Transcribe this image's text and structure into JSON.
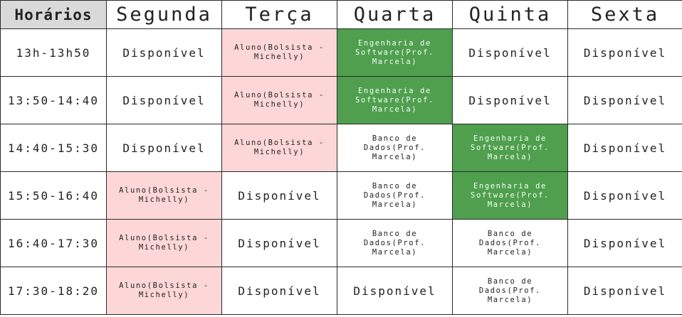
{
  "header": {
    "corner_label": "Horários",
    "days": [
      "Segunda",
      "Terça",
      "Quarta",
      "Quinta",
      "Sexta"
    ]
  },
  "rows": [
    {
      "time": "13h-13h50",
      "cells": [
        "Disponível",
        "Aluno(Bolsista -Michelly)",
        "Engenharia de Software(Prof. Marcela)",
        "Disponível",
        "Disponível"
      ],
      "kinds": [
        "free",
        "aluno",
        "eng",
        "free",
        "free"
      ]
    },
    {
      "time": "13:50-14:40",
      "cells": [
        "Disponível",
        "Aluno(Bolsista -Michelly)",
        "Engenharia de Software(Prof. Marcela)",
        "Disponível",
        "Disponível"
      ],
      "kinds": [
        "free",
        "aluno",
        "eng",
        "free",
        "free"
      ]
    },
    {
      "time": "14:40-15:30",
      "cells": [
        "Disponível",
        "Aluno(Bolsista -Michelly)",
        "Banco de Dados(Prof. Marcela)",
        "Engenharia de Software(Prof. Marcela)",
        "Disponível"
      ],
      "kinds": [
        "free",
        "aluno",
        "banco",
        "eng",
        "free"
      ]
    },
    {
      "time": "15:50-16:40",
      "cells": [
        "Aluno(Bolsista -Michelly)",
        "Disponível",
        "Banco de Dados(Prof. Marcela)",
        "Engenharia de Software(Prof. Marcela)",
        "Disponível"
      ],
      "kinds": [
        "aluno",
        "free",
        "banco",
        "eng",
        "free"
      ]
    },
    {
      "time": "16:40-17:30",
      "cells": [
        "Aluno(Bolsista -Michelly)",
        "Disponível",
        "Banco de Dados(Prof. Marcela)",
        "Banco de Dados(Prof. Marcela)",
        "Disponível"
      ],
      "kinds": [
        "aluno",
        "free",
        "banco",
        "banco",
        "free"
      ]
    },
    {
      "time": "17:30-18:20",
      "cells": [
        "Aluno(Bolsista -Michelly)",
        "Disponível",
        "Disponível",
        "Banco de Dados(Prof. Marcela)",
        "Disponível"
      ],
      "kinds": [
        "aluno",
        "free",
        "free",
        "banco",
        "free"
      ]
    }
  ],
  "colors": {
    "aluno": "#fdd7d7",
    "engenharia": "#4f9f4f",
    "corner": "#d9d9d9",
    "border": "#2a2a2a"
  }
}
